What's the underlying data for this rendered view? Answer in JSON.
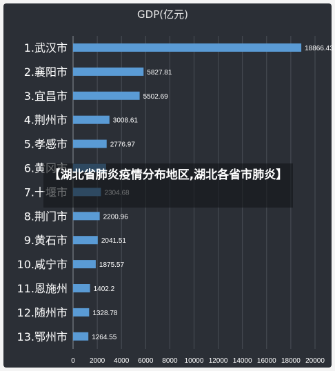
{
  "chart_data": {
    "type": "bar",
    "orientation": "horizontal",
    "title": "GDP(亿元)",
    "categories": [
      "1.武汉市",
      "2.襄阳市",
      "3.宜昌市",
      "4.荆州市",
      "5.孝感市",
      "6.黄冈市",
      "7.十堰市",
      "8.荆门市",
      "9.黄石市",
      "10.咸宁市",
      "11.恩施州",
      "12.随州市",
      "13.鄂州市"
    ],
    "values": [
      18866.43,
      5827.81,
      5502.69,
      3008.61,
      2776.97,
      2726.9,
      2304.68,
      2200.96,
      2041.51,
      1875.57,
      1402.2,
      1328.78,
      1264.55
    ],
    "value_labels": [
      "18866.43",
      "5827.81",
      "5502.69",
      "3008.61",
      "2776.97",
      "",
      "2304.68",
      "2200.96",
      "2041.51",
      "1875.57",
      "1402.2",
      "1328.78",
      "1264.55"
    ],
    "xlim": [
      0,
      20000
    ],
    "xticks": [
      "0",
      "2000",
      "4000",
      "6000",
      "8000",
      "10000",
      "12000",
      "14000",
      "16000",
      "18000",
      "20000"
    ],
    "grid": true,
    "colors": {
      "bar": "#5a9bd5",
      "background": "#2b2f36",
      "grid": "#4a4f57",
      "text": "#ffffff"
    }
  },
  "overlay": {
    "text": "【湖北省肺炎疫情分布地区,湖北各省市肺炎】"
  }
}
